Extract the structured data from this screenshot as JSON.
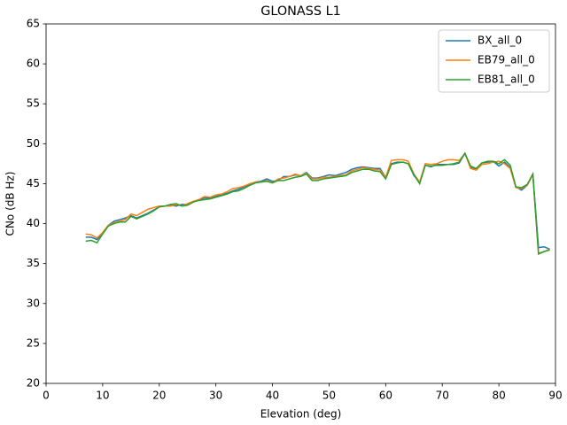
{
  "chart_data": {
    "type": "line",
    "title": "GLONASS L1",
    "x_label": "Elevation (deg)",
    "y_label": "CNo (dB Hz)",
    "x": [
      7,
      8,
      9,
      10,
      11,
      12,
      13,
      14,
      15,
      16,
      17,
      18,
      19,
      20,
      21,
      22,
      23,
      24,
      25,
      26,
      27,
      28,
      29,
      30,
      31,
      32,
      33,
      34,
      35,
      36,
      37,
      38,
      39,
      40,
      41,
      42,
      43,
      44,
      45,
      46,
      47,
      48,
      49,
      50,
      51,
      52,
      53,
      54,
      55,
      56,
      57,
      58,
      59,
      60,
      61,
      62,
      63,
      64,
      65,
      66,
      67,
      68,
      69,
      70,
      71,
      72,
      73,
      74,
      75,
      76,
      77,
      78,
      79,
      80,
      81,
      82,
      83,
      84,
      85,
      86,
      87,
      88,
      89
    ],
    "series": [
      {
        "name": "BX_all_0",
        "color": "#1f77b4",
        "values": [
          38.3,
          38.3,
          38.0,
          38.8,
          39.8,
          40.3,
          40.5,
          40.7,
          41.0,
          40.7,
          41.0,
          41.3,
          41.7,
          42.1,
          42.2,
          42.3,
          42.2,
          42.4,
          42.4,
          42.7,
          43.0,
          43.2,
          43.2,
          43.4,
          43.6,
          43.8,
          44.1,
          44.3,
          44.6,
          44.9,
          45.2,
          45.3,
          45.6,
          45.3,
          45.4,
          45.9,
          45.9,
          46.1,
          46.0,
          46.4,
          45.7,
          45.7,
          45.9,
          46.1,
          46.0,
          46.2,
          46.4,
          46.8,
          47.0,
          47.1,
          47.0,
          46.9,
          46.9,
          45.8,
          47.5,
          47.7,
          47.7,
          47.5,
          46.0,
          45.2,
          47.3,
          47.1,
          47.4,
          47.4,
          47.4,
          47.4,
          47.6,
          48.8,
          47.0,
          46.9,
          47.6,
          47.7,
          47.8,
          47.2,
          47.7,
          47.0,
          44.6,
          44.2,
          44.8,
          46.2,
          37.0,
          37.1,
          36.8
        ]
      },
      {
        "name": "EB79_all_0",
        "color": "#ff7f0e",
        "values": [
          38.7,
          38.6,
          38.2,
          38.9,
          39.8,
          40.1,
          40.3,
          40.5,
          41.2,
          41.0,
          41.4,
          41.8,
          42.0,
          42.2,
          42.2,
          42.2,
          42.4,
          42.2,
          42.5,
          42.8,
          43.0,
          43.4,
          43.3,
          43.6,
          43.7,
          44.0,
          44.4,
          44.5,
          44.7,
          45.0,
          45.2,
          45.2,
          45.4,
          45.1,
          45.6,
          45.7,
          45.9,
          46.2,
          46.0,
          46.3,
          45.6,
          45.6,
          45.8,
          45.8,
          45.9,
          46.0,
          46.1,
          46.6,
          46.8,
          47.0,
          46.9,
          46.8,
          46.7,
          45.8,
          47.9,
          48.0,
          48.0,
          47.8,
          46.2,
          45.2,
          47.5,
          47.4,
          47.5,
          47.8,
          48.0,
          48.0,
          47.9,
          48.8,
          46.9,
          46.7,
          47.4,
          47.5,
          47.7,
          47.8,
          47.5,
          46.9,
          44.5,
          44.4,
          44.8,
          46.1,
          36.3,
          36.5,
          36.8
        ]
      },
      {
        "name": "EB81_all_0",
        "color": "#2ca02c",
        "values": [
          37.8,
          37.9,
          37.6,
          38.7,
          39.7,
          40.0,
          40.2,
          40.2,
          40.9,
          40.6,
          40.9,
          41.2,
          41.6,
          42.1,
          42.2,
          42.4,
          42.5,
          42.2,
          42.3,
          42.7,
          42.9,
          43.0,
          43.1,
          43.3,
          43.5,
          43.7,
          44.0,
          44.1,
          44.4,
          44.8,
          45.1,
          45.2,
          45.3,
          45.1,
          45.4,
          45.4,
          45.6,
          45.8,
          45.9,
          46.2,
          45.4,
          45.4,
          45.6,
          45.7,
          45.8,
          45.9,
          46.0,
          46.4,
          46.6,
          46.8,
          46.8,
          46.6,
          46.5,
          45.6,
          47.4,
          47.6,
          47.7,
          47.5,
          46.1,
          45.0,
          47.3,
          47.2,
          47.3,
          47.3,
          47.4,
          47.5,
          47.7,
          48.8,
          47.2,
          46.9,
          47.6,
          47.8,
          47.8,
          47.5,
          48.0,
          47.3,
          44.6,
          44.5,
          44.9,
          46.2,
          36.2,
          36.5,
          36.7
        ]
      }
    ],
    "xlim": [
      0,
      90
    ],
    "ylim": [
      20,
      65
    ],
    "xticks": [
      0,
      10,
      20,
      30,
      40,
      50,
      60,
      70,
      80,
      90
    ],
    "yticks": [
      20,
      25,
      30,
      35,
      40,
      45,
      50,
      55,
      60,
      65
    ],
    "legend": "upper right",
    "grid": false
  }
}
